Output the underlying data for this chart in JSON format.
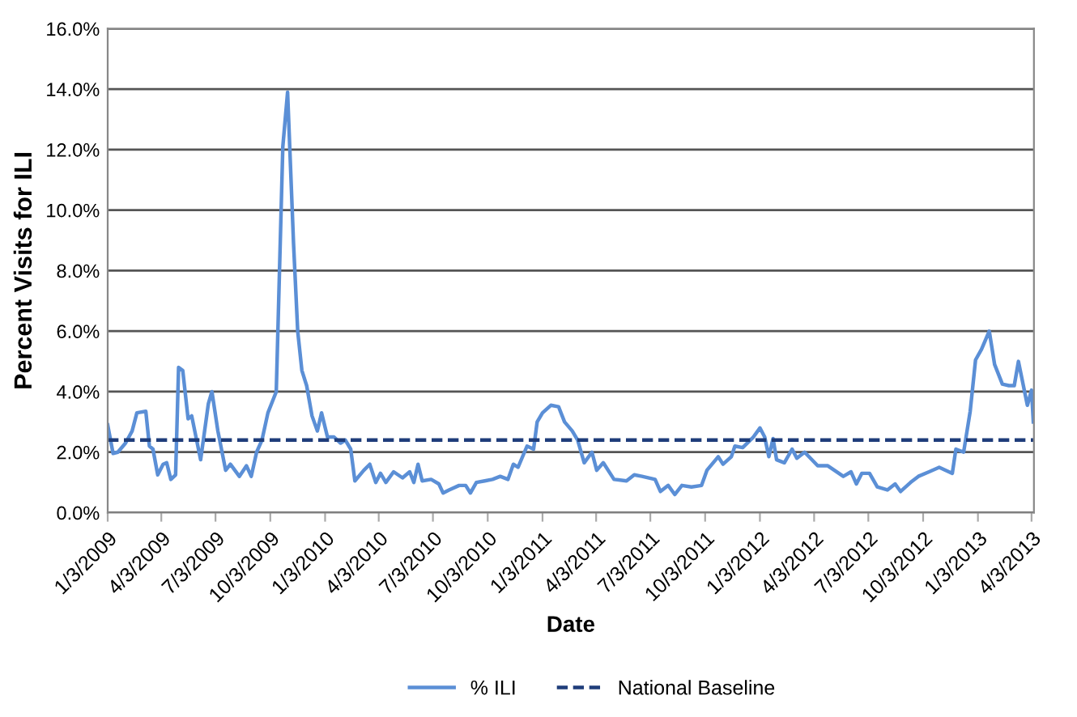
{
  "chart_data": {
    "type": "line",
    "xlabel": "Date",
    "ylabel": "Percent Visits for ILI",
    "xlim": [
      "2009-01-03",
      "2013-04-07"
    ],
    "ylim": [
      0,
      16
    ],
    "xticks": [
      {
        "value": "2009-01-03",
        "label": "1/3/2009"
      },
      {
        "value": "2009-04-03",
        "label": "4/3/2009"
      },
      {
        "value": "2009-07-03",
        "label": "7/3/2009"
      },
      {
        "value": "2009-10-03",
        "label": "10/3/2009"
      },
      {
        "value": "2010-01-03",
        "label": "1/3/2010"
      },
      {
        "value": "2010-04-03",
        "label": "4/3/2010"
      },
      {
        "value": "2010-07-03",
        "label": "7/3/2010"
      },
      {
        "value": "2010-10-03",
        "label": "10/3/2010"
      },
      {
        "value": "2011-01-03",
        "label": "1/3/2011"
      },
      {
        "value": "2011-04-03",
        "label": "4/3/2011"
      },
      {
        "value": "2011-07-03",
        "label": "7/3/2011"
      },
      {
        "value": "2011-10-03",
        "label": "10/3/2011"
      },
      {
        "value": "2012-01-03",
        "label": "1/3/2012"
      },
      {
        "value": "2012-04-03",
        "label": "4/3/2012"
      },
      {
        "value": "2012-07-03",
        "label": "7/3/2012"
      },
      {
        "value": "2012-10-03",
        "label": "10/3/2012"
      },
      {
        "value": "2013-01-03",
        "label": "1/3/2013"
      },
      {
        "value": "2013-04-03",
        "label": "4/3/2013"
      }
    ],
    "yticks": [
      {
        "value": 0,
        "label": "0.0%"
      },
      {
        "value": 2,
        "label": "2.0%"
      },
      {
        "value": 4,
        "label": "4.0%"
      },
      {
        "value": 6,
        "label": "6.0%"
      },
      {
        "value": 8,
        "label": "8.0%"
      },
      {
        "value": 10,
        "label": "10.0%"
      },
      {
        "value": 12,
        "label": "12.0%"
      },
      {
        "value": 14,
        "label": "14.0%"
      },
      {
        "value": 16,
        "label": "16.0%"
      }
    ],
    "grid": "y",
    "legend": "bottom",
    "marker": "none",
    "series": [
      {
        "name": "% ILI",
        "color": "#5b8fd6",
        "line_style": "solid",
        "x": [
          "2009-01-03",
          "2009-01-12",
          "2009-01-20",
          "2009-02-02",
          "2009-02-13",
          "2009-02-21",
          "2009-03-08",
          "2009-03-14",
          "2009-03-20",
          "2009-03-28",
          "2009-04-06",
          "2009-04-12",
          "2009-04-19",
          "2009-04-27",
          "2009-05-02",
          "2009-05-09",
          "2009-05-18",
          "2009-05-24",
          "2009-06-08",
          "2009-06-21",
          "2009-06-27",
          "2009-07-07",
          "2009-07-20",
          "2009-07-28",
          "2009-08-12",
          "2009-08-24",
          "2009-09-01",
          "2009-09-10",
          "2009-09-19",
          "2009-09-29",
          "2009-10-13",
          "2009-10-24",
          "2009-11-01",
          "2009-11-11",
          "2009-11-18",
          "2009-11-25",
          "2009-12-03",
          "2009-12-12",
          "2009-12-21",
          "2009-12-28",
          "2010-01-07",
          "2010-01-18",
          "2010-01-29",
          "2010-02-06",
          "2010-02-15",
          "2010-02-22",
          "2010-03-09",
          "2010-03-19",
          "2010-03-29",
          "2010-04-06",
          "2010-04-15",
          "2010-04-28",
          "2010-05-13",
          "2010-05-25",
          "2010-06-01",
          "2010-06-08",
          "2010-06-15",
          "2010-06-30",
          "2010-07-13",
          "2010-07-20",
          "2010-07-30",
          "2010-08-16",
          "2010-08-27",
          "2010-09-04",
          "2010-09-14",
          "2010-09-28",
          "2010-10-11",
          "2010-10-24",
          "2010-11-06",
          "2010-11-15",
          "2010-11-23",
          "2010-12-08",
          "2010-12-19",
          "2010-12-25",
          "2011-01-03",
          "2011-01-17",
          "2011-01-30",
          "2011-02-09",
          "2011-02-22",
          "2011-03-03",
          "2011-03-14",
          "2011-03-27",
          "2011-04-04",
          "2011-04-15",
          "2011-05-03",
          "2011-05-24",
          "2011-06-06",
          "2011-06-19",
          "2011-07-11",
          "2011-07-20",
          "2011-08-02",
          "2011-08-13",
          "2011-08-25",
          "2011-09-10",
          "2011-09-27",
          "2011-10-06",
          "2011-10-25",
          "2011-11-02",
          "2011-11-16",
          "2011-11-22",
          "2011-12-05",
          "2011-12-23",
          "2012-01-03",
          "2012-01-11",
          "2012-01-18",
          "2012-01-25",
          "2012-01-31",
          "2012-02-13",
          "2012-02-26",
          "2012-03-05",
          "2012-03-18",
          "2012-04-09",
          "2012-04-26",
          "2012-05-22",
          "2012-06-04",
          "2012-06-13",
          "2012-06-22",
          "2012-07-05",
          "2012-07-18",
          "2012-08-04",
          "2012-08-17",
          "2012-08-26",
          "2012-09-12",
          "2012-09-25",
          "2012-10-13",
          "2012-10-30",
          "2012-11-21",
          "2012-11-27",
          "2012-12-10",
          "2012-12-21",
          "2012-12-30",
          "2013-01-09",
          "2013-01-22",
          "2013-01-31",
          "2013-02-13",
          "2013-02-24",
          "2013-03-05",
          "2013-03-12",
          "2013-03-27",
          "2013-04-03",
          "2013-04-06"
        ],
        "values": [
          2.9,
          1.96,
          2.0,
          2.3,
          2.7,
          3.3,
          3.35,
          2.2,
          2.1,
          1.25,
          1.6,
          1.65,
          1.1,
          1.25,
          4.8,
          4.7,
          3.1,
          3.2,
          1.75,
          3.6,
          4.0,
          2.7,
          1.4,
          1.6,
          1.2,
          1.55,
          1.2,
          2.0,
          2.4,
          3.3,
          4.0,
          12.1,
          13.9,
          8.9,
          6.0,
          4.7,
          4.2,
          3.2,
          2.7,
          3.3,
          2.5,
          2.5,
          2.3,
          2.4,
          2.1,
          1.05,
          1.4,
          1.6,
          1.0,
          1.3,
          1.0,
          1.35,
          1.15,
          1.35,
          1.0,
          1.6,
          1.05,
          1.1,
          0.95,
          0.65,
          0.75,
          0.9,
          0.9,
          0.65,
          1.0,
          1.05,
          1.1,
          1.2,
          1.1,
          1.6,
          1.5,
          2.2,
          2.1,
          3.0,
          3.3,
          3.55,
          3.5,
          3.0,
          2.7,
          2.4,
          1.65,
          2.0,
          1.4,
          1.65,
          1.1,
          1.05,
          1.25,
          1.2,
          1.1,
          0.7,
          0.9,
          0.6,
          0.9,
          0.85,
          0.9,
          1.4,
          1.85,
          1.6,
          1.85,
          2.2,
          2.15,
          2.5,
          2.8,
          2.5,
          1.85,
          2.45,
          1.75,
          1.65,
          2.1,
          1.8,
          2.0,
          1.55,
          1.55,
          1.2,
          1.35,
          0.95,
          1.3,
          1.3,
          0.85,
          0.75,
          0.95,
          0.7,
          1.0,
          1.2,
          1.35,
          1.5,
          1.3,
          2.1,
          2.0,
          3.35,
          5.05,
          5.4,
          6.0,
          4.9,
          4.25,
          4.2,
          4.2,
          5.0,
          3.55,
          4.05,
          3.0
        ]
      },
      {
        "name": "National Baseline",
        "color": "#1f3d7a",
        "line_style": "dashed",
        "x": [
          "2009-01-03",
          "2013-04-07"
        ],
        "values": [
          2.4,
          2.4
        ]
      }
    ]
  }
}
